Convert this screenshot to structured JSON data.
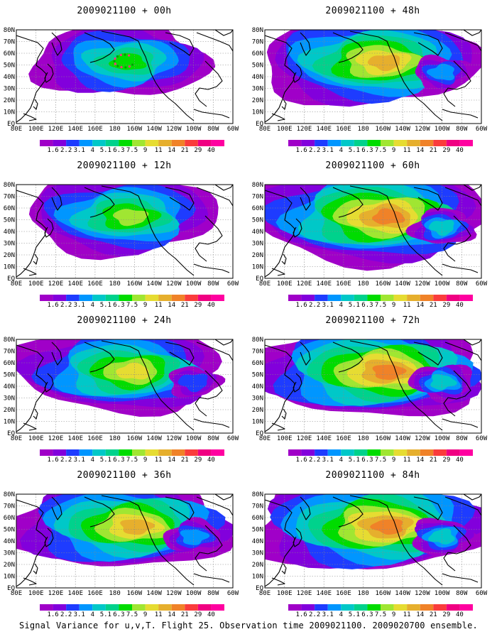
{
  "panels": [
    {
      "title": "2009021100 + 00h",
      "lead": "00h",
      "max_level": 7
    },
    {
      "title": "2009021100 + 48h",
      "lead": "48h",
      "max_level": 10
    },
    {
      "title": "2009021100 + 12h",
      "lead": "12h",
      "max_level": 8
    },
    {
      "title": "2009021100 + 60h",
      "lead": "60h",
      "max_level": 11
    },
    {
      "title": "2009021100 + 24h",
      "lead": "24h",
      "max_level": 9
    },
    {
      "title": "2009021100 + 72h",
      "lead": "72h",
      "max_level": 11
    },
    {
      "title": "2009021100 + 36h",
      "lead": "36h",
      "max_level": 10
    },
    {
      "title": "2009021100 + 84h",
      "lead": "84h",
      "max_level": 11
    }
  ],
  "lat_labels": [
    "80N",
    "70N",
    "60N",
    "50N",
    "40N",
    "30N",
    "20N",
    "10N",
    "EQ"
  ],
  "lon_labels": [
    "80E",
    "100E",
    "120E",
    "140E",
    "160E",
    "180",
    "160W",
    "140W",
    "120W",
    "100W",
    "80W",
    "60W"
  ],
  "colorbar": {
    "labels": [
      "1.6",
      "2.2",
      "3.1",
      "4",
      "5.1",
      "6.3",
      "7.5",
      "9",
      "11",
      "14",
      "21",
      "29",
      "40"
    ],
    "colors": [
      "#a000c8",
      "#8200dc",
      "#1e3cff",
      "#0096ff",
      "#00c8c8",
      "#00d28c",
      "#00dc00",
      "#a0e632",
      "#e6dc32",
      "#e6af2d",
      "#f08228",
      "#fa3c3c",
      "#f00082",
      "#ff00a0"
    ]
  },
  "footer": "Signal Variance for u,v,T. Flight 25. Observation time 2009021100. 2009020700 ensemble."
}
